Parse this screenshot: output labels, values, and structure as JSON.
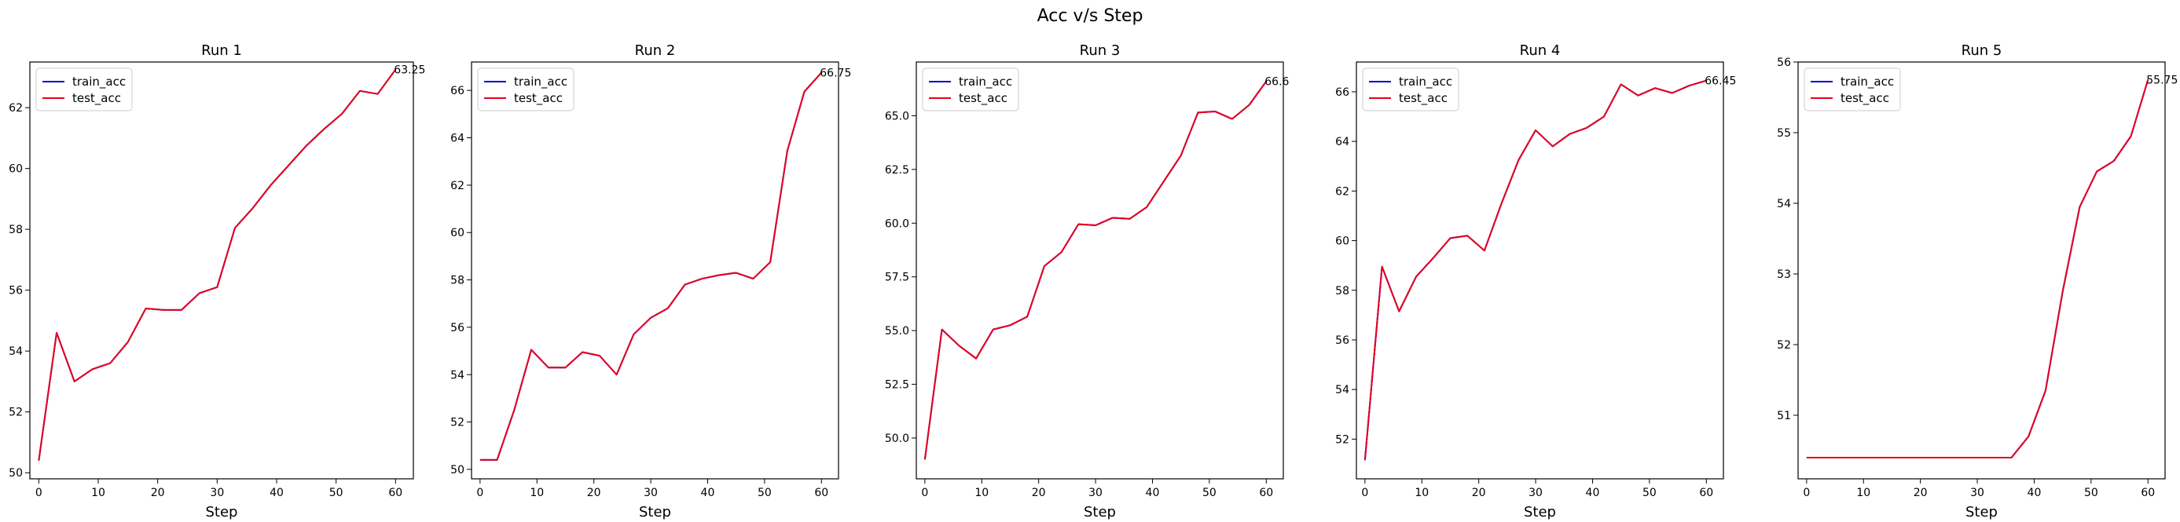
{
  "figure": {
    "title": "Acc v/s Step"
  },
  "colors": {
    "train": "#0000cc",
    "test": "#e8001c"
  },
  "chart_data": [
    {
      "type": "line",
      "title": "Run 1",
      "xlabel": "Step",
      "ylabel": "",
      "xlim": [
        -1.5,
        63
      ],
      "ylim": [
        49.8,
        63.5
      ],
      "xticks": [
        0,
        10,
        20,
        30,
        40,
        50,
        60
      ],
      "yticks": [
        50,
        52,
        54,
        56,
        58,
        60,
        62
      ],
      "legend": "top-left",
      "end_label": "63.25",
      "x": [
        0,
        3,
        6,
        9,
        12,
        15,
        18,
        21,
        24,
        27,
        30,
        33,
        36,
        39,
        42,
        45,
        48,
        51,
        54,
        57,
        60
      ],
      "series": [
        {
          "name": "train_acc",
          "values": [
            50.4,
            54.6,
            53.0,
            53.4,
            53.6,
            54.3,
            55.4,
            55.35,
            55.35,
            55.9,
            56.1,
            58.05,
            58.7,
            59.45,
            60.1,
            60.75,
            61.3,
            61.8,
            62.55,
            62.45,
            63.25
          ]
        },
        {
          "name": "test_acc",
          "values": [
            50.4,
            54.6,
            53.0,
            53.4,
            53.6,
            54.3,
            55.4,
            55.35,
            55.35,
            55.9,
            56.1,
            58.05,
            58.7,
            59.45,
            60.1,
            60.75,
            61.3,
            61.8,
            62.55,
            62.45,
            63.25
          ]
        }
      ]
    },
    {
      "type": "line",
      "title": "Run 2",
      "xlabel": "Step",
      "ylabel": "",
      "xlim": [
        -1.5,
        63
      ],
      "ylim": [
        49.6,
        67.2
      ],
      "xticks": [
        0,
        10,
        20,
        30,
        40,
        50,
        60
      ],
      "yticks": [
        50,
        52,
        54,
        56,
        58,
        60,
        62,
        64,
        66
      ],
      "legend": "top-left",
      "end_label": "66.75",
      "x": [
        0,
        3,
        6,
        9,
        12,
        15,
        18,
        21,
        24,
        27,
        30,
        33,
        36,
        39,
        42,
        45,
        48,
        51,
        54,
        57,
        60
      ],
      "series": [
        {
          "name": "train_acc",
          "values": [
            50.4,
            50.4,
            52.5,
            55.05,
            54.3,
            54.3,
            54.95,
            54.8,
            54.0,
            55.7,
            56.4,
            56.8,
            57.8,
            58.05,
            58.2,
            58.3,
            58.05,
            58.75,
            63.45,
            65.95,
            66.75
          ]
        },
        {
          "name": "test_acc",
          "values": [
            50.4,
            50.4,
            52.5,
            55.05,
            54.3,
            54.3,
            54.95,
            54.8,
            54.0,
            55.7,
            56.4,
            56.8,
            57.8,
            58.05,
            58.2,
            58.3,
            58.05,
            58.75,
            63.45,
            65.95,
            66.75
          ]
        }
      ]
    },
    {
      "type": "line",
      "title": "Run 3",
      "xlabel": "Step",
      "ylabel": "",
      "xlim": [
        -1.5,
        63
      ],
      "ylim": [
        48.1,
        67.5
      ],
      "xticks": [
        0,
        10,
        20,
        30,
        40,
        50,
        60
      ],
      "yticks": [
        50.0,
        52.5,
        55.0,
        57.5,
        60.0,
        62.5,
        65.0
      ],
      "ytick_labels": [
        "50.0",
        "52.5",
        "55.0",
        "57.5",
        "60.0",
        "62.5",
        "65.0"
      ],
      "legend": "top-left",
      "end_label": "66.6",
      "x": [
        0,
        3,
        6,
        9,
        12,
        15,
        18,
        21,
        24,
        27,
        30,
        33,
        36,
        39,
        42,
        45,
        48,
        51,
        54,
        57,
        60
      ],
      "series": [
        {
          "name": "train_acc",
          "values": [
            49.0,
            55.05,
            54.3,
            53.7,
            55.05,
            55.25,
            55.65,
            58.0,
            58.65,
            59.95,
            59.9,
            60.25,
            60.2,
            60.75,
            61.95,
            63.15,
            65.15,
            65.2,
            64.85,
            65.5,
            66.6
          ]
        },
        {
          "name": "test_acc",
          "values": [
            49.0,
            55.05,
            54.3,
            53.7,
            55.05,
            55.25,
            55.65,
            58.0,
            58.65,
            59.95,
            59.9,
            60.25,
            60.2,
            60.75,
            61.95,
            63.15,
            65.15,
            65.2,
            64.85,
            65.5,
            66.6
          ]
        }
      ]
    },
    {
      "type": "line",
      "title": "Run 4",
      "xlabel": "Step",
      "ylabel": "",
      "xlim": [
        -1.5,
        63
      ],
      "ylim": [
        50.4,
        67.2
      ],
      "xticks": [
        0,
        10,
        20,
        30,
        40,
        50,
        60
      ],
      "yticks": [
        52,
        54,
        56,
        58,
        60,
        62,
        64,
        66
      ],
      "legend": "top-left",
      "end_label": "66.45",
      "x": [
        0,
        3,
        6,
        9,
        12,
        15,
        18,
        21,
        24,
        27,
        30,
        33,
        36,
        39,
        42,
        45,
        48,
        51,
        54,
        57,
        60
      ],
      "series": [
        {
          "name": "train_acc",
          "values": [
            51.15,
            58.95,
            57.15,
            58.55,
            59.3,
            60.1,
            60.2,
            59.6,
            61.5,
            63.25,
            64.45,
            63.8,
            64.3,
            64.55,
            65.0,
            66.3,
            65.85,
            66.15,
            65.95,
            66.25,
            66.45
          ]
        },
        {
          "name": "test_acc",
          "values": [
            51.15,
            58.95,
            57.15,
            58.55,
            59.3,
            60.1,
            60.2,
            59.6,
            61.5,
            63.25,
            64.45,
            63.8,
            64.3,
            64.55,
            65.0,
            66.3,
            65.85,
            66.15,
            65.95,
            66.25,
            66.45
          ]
        }
      ]
    },
    {
      "type": "line",
      "title": "Run 5",
      "xlabel": "Step",
      "ylabel": "",
      "xlim": [
        -1.5,
        63
      ],
      "ylim": [
        50.1,
        56.0
      ],
      "xticks": [
        0,
        10,
        20,
        30,
        40,
        50,
        60
      ],
      "yticks": [
        51,
        52,
        53,
        54,
        55,
        56
      ],
      "legend": "top-left",
      "end_label": "55.75",
      "x": [
        0,
        3,
        6,
        9,
        12,
        15,
        18,
        21,
        24,
        27,
        30,
        33,
        36,
        39,
        42,
        45,
        48,
        51,
        54,
        57,
        60
      ],
      "series": [
        {
          "name": "train_acc",
          "values": [
            50.4,
            50.4,
            50.4,
            50.4,
            50.4,
            50.4,
            50.4,
            50.4,
            50.4,
            50.4,
            50.4,
            50.4,
            50.4,
            50.7,
            51.35,
            52.75,
            53.95,
            54.45,
            54.6,
            54.95,
            55.75
          ]
        },
        {
          "name": "test_acc",
          "values": [
            50.4,
            50.4,
            50.4,
            50.4,
            50.4,
            50.4,
            50.4,
            50.4,
            50.4,
            50.4,
            50.4,
            50.4,
            50.4,
            50.7,
            51.35,
            52.75,
            53.95,
            54.45,
            54.6,
            54.95,
            55.75
          ]
        }
      ]
    }
  ]
}
